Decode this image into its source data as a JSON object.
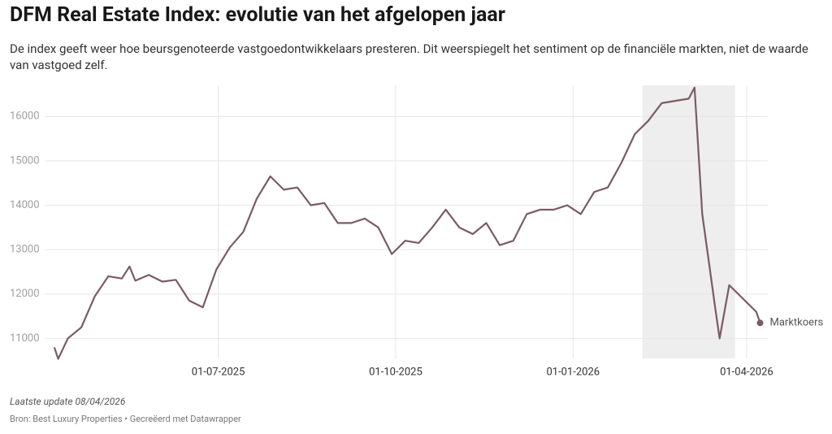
{
  "chart_data": {
    "type": "line",
    "title": "DFM Real Estate Index: evolutie van het afgelopen jaar",
    "subtitle": "De index geeft weer hoe beursgenoteerde vastgoedontwikkelaars presteren. Dit weerspiegelt het sentiment op de financiële markten, niet de waarde van vastgoed zelf.",
    "update_note": "Laatste update 08/04/2026",
    "source_note": "Bron: Best Luxury Properties • Gecreëerd met Datawrapper",
    "x": [
      "2025-04-07",
      "2025-04-09",
      "2025-04-14",
      "2025-04-21",
      "2025-04-28",
      "2025-05-05",
      "2025-05-12",
      "2025-05-16",
      "2025-05-19",
      "2025-05-26",
      "2025-06-02",
      "2025-06-09",
      "2025-06-16",
      "2025-06-23",
      "2025-06-30",
      "2025-07-07",
      "2025-07-14",
      "2025-07-21",
      "2025-07-28",
      "2025-08-04",
      "2025-08-11",
      "2025-08-18",
      "2025-08-25",
      "2025-09-01",
      "2025-09-08",
      "2025-09-15",
      "2025-09-22",
      "2025-09-29",
      "2025-10-06",
      "2025-10-13",
      "2025-10-20",
      "2025-10-27",
      "2025-11-03",
      "2025-11-10",
      "2025-11-17",
      "2025-11-24",
      "2025-12-01",
      "2025-12-08",
      "2025-12-15",
      "2025-12-22",
      "2025-12-29",
      "2026-01-05",
      "2026-01-12",
      "2026-01-19",
      "2026-01-26",
      "2026-02-02",
      "2026-02-09",
      "2026-02-16",
      "2026-02-23",
      "2026-03-02",
      "2026-03-05",
      "2026-03-09",
      "2026-03-16",
      "2026-03-18",
      "2026-03-23",
      "2026-03-30",
      "2026-04-06",
      "2026-04-08"
    ],
    "series": [
      {
        "name": "Marktkoers",
        "color": "#7a5c63",
        "values": [
          10800,
          10540,
          11000,
          11250,
          11950,
          12400,
          12350,
          12620,
          12300,
          12430,
          12280,
          12320,
          11850,
          11700,
          12550,
          13050,
          13400,
          14150,
          14650,
          14350,
          14400,
          14000,
          14050,
          13600,
          13600,
          13700,
          13500,
          12900,
          13200,
          13150,
          13500,
          13900,
          13500,
          13350,
          13600,
          13100,
          13200,
          13800,
          13900,
          13900,
          14000,
          13800,
          14300,
          14400,
          14950,
          15600,
          15900,
          16300,
          16350,
          16400,
          16650,
          13800,
          11600,
          11000,
          12200,
          11900,
          11600,
          11350
        ]
      }
    ],
    "xlim": [
      "2025-04-02",
      "2026-04-12"
    ],
    "xticks": [
      {
        "value": "2025-07-01",
        "label": "01-07-2025"
      },
      {
        "value": "2025-10-01",
        "label": "01-10-2025"
      },
      {
        "value": "2026-01-01",
        "label": "01-01-2026"
      },
      {
        "value": "2026-04-01",
        "label": "01-04-2026"
      }
    ],
    "ylim": [
      10550,
      16700
    ],
    "yticks": [
      11000,
      12000,
      13000,
      14000,
      15000,
      16000
    ],
    "highlight_x_range": [
      "2026-02-06",
      "2026-03-26"
    ],
    "highlight_color": "#eeeeee",
    "grid": true
  }
}
